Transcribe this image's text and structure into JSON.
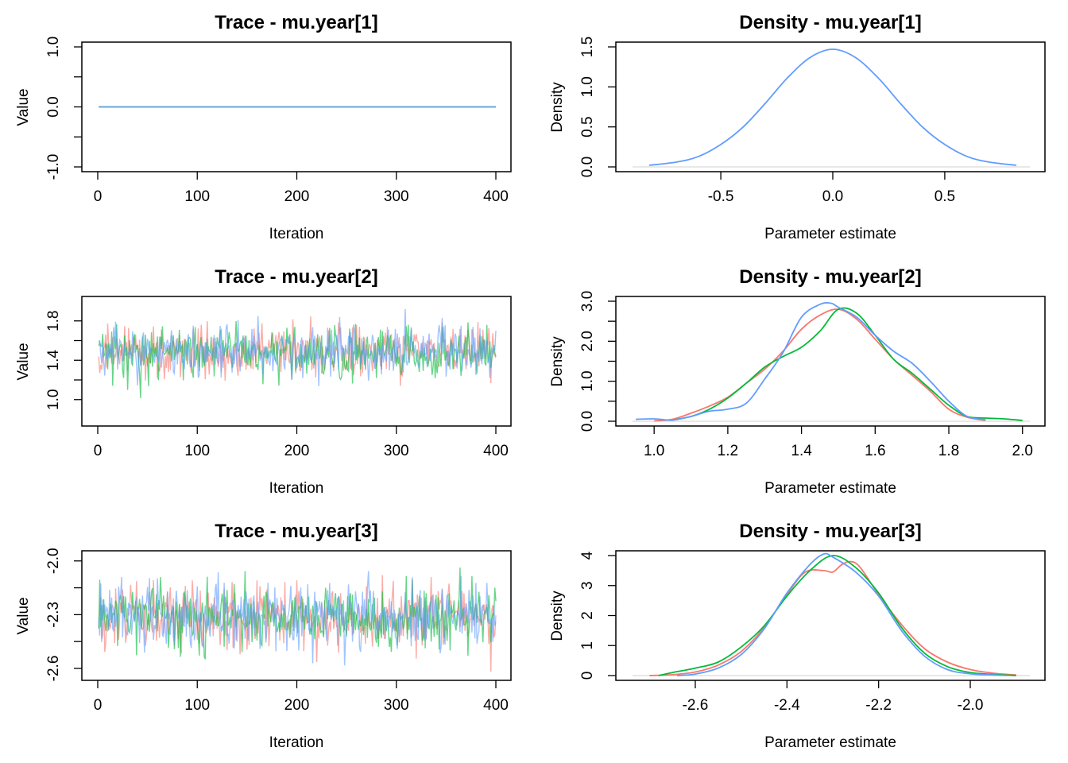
{
  "chart_data": [
    {
      "type": "line",
      "title": "Trace - mu.year[1]",
      "xlabel": "Iteration",
      "ylabel": "Value",
      "xlim": [
        0,
        400
      ],
      "ylim": [
        -1.0,
        1.0
      ],
      "xticks": [
        "0",
        "100",
        "200",
        "300",
        "400"
      ],
      "yticks": [
        "-1.0",
        "0.0",
        "1.0"
      ],
      "ytick_values": [
        -1.0,
        0.0,
        1.0
      ],
      "yminor": [
        -0.5,
        0.5
      ],
      "trace": {
        "n": 400,
        "center": 0.0,
        "spread": 0.0,
        "min": 0.0,
        "max": 0.0
      },
      "series": [
        {
          "name": "",
          "color": "#F8766D"
        },
        {
          "name": "",
          "color": "#00BA38"
        },
        {
          "name": "",
          "color": "#619CFF"
        }
      ]
    },
    {
      "type": "line",
      "title": "Density - mu.year[1]",
      "xlabel": "Parameter estimate",
      "ylabel": "Density",
      "xlim": [
        -0.88,
        0.88
      ],
      "ylim": [
        0,
        1.5
      ],
      "xticks": [
        "-0.5",
        "0.0",
        "0.5"
      ],
      "xtick_values": [
        -0.5,
        0.0,
        0.5
      ],
      "yticks": [
        "0.0",
        "0.5",
        "1.0",
        "1.5"
      ],
      "ytick_values": [
        0.0,
        0.5,
        1.0,
        1.5
      ],
      "series": [
        {
          "name": "",
          "color": "#619CFF",
          "x": [
            -0.82,
            -0.7,
            -0.6,
            -0.5,
            -0.4,
            -0.3,
            -0.2,
            -0.1,
            0.0,
            0.1,
            0.2,
            0.3,
            0.4,
            0.5,
            0.6,
            0.7,
            0.82
          ],
          "y": [
            0.02,
            0.06,
            0.13,
            0.28,
            0.5,
            0.8,
            1.12,
            1.37,
            1.47,
            1.37,
            1.12,
            0.8,
            0.5,
            0.28,
            0.13,
            0.06,
            0.02
          ]
        }
      ]
    },
    {
      "type": "line",
      "title": "Trace - mu.year[2]",
      "xlabel": "Iteration",
      "ylabel": "Value",
      "xlim": [
        0,
        400
      ],
      "ylim": [
        0.78,
        2.0
      ],
      "xticks": [
        "0",
        "100",
        "200",
        "300",
        "400"
      ],
      "yticks": [
        "1.0",
        "1.4",
        "1.8"
      ],
      "ytick_values": [
        1.0,
        1.4,
        1.8
      ],
      "yminor": [
        1.2,
        1.6
      ],
      "trace": {
        "n": 400,
        "center": 1.48,
        "spread": 0.13,
        "min": 0.86,
        "max": 1.94
      },
      "series": [
        {
          "name": "",
          "color": "#F8766D"
        },
        {
          "name": "",
          "color": "#00BA38"
        },
        {
          "name": "",
          "color": "#619CFF"
        }
      ]
    },
    {
      "type": "line",
      "title": "Density - mu.year[2]",
      "xlabel": "Parameter estimate",
      "ylabel": "Density",
      "xlim": [
        0.95,
        2.02
      ],
      "ylim": [
        0,
        3.0
      ],
      "xticks": [
        "1.0",
        "1.2",
        "1.4",
        "1.6",
        "1.8",
        "2.0"
      ],
      "xtick_values": [
        1.0,
        1.2,
        1.4,
        1.6,
        1.8,
        2.0
      ],
      "yticks": [
        "0.0",
        "1.0",
        "2.0",
        "3.0"
      ],
      "ytick_values": [
        0.0,
        1.0,
        2.0,
        3.0
      ],
      "yminor": [
        0.5,
        1.5,
        2.5
      ],
      "series": [
        {
          "name": "",
          "color": "#F8766D",
          "x": [
            1.0,
            1.05,
            1.1,
            1.15,
            1.2,
            1.25,
            1.3,
            1.35,
            1.4,
            1.45,
            1.5,
            1.55,
            1.6,
            1.65,
            1.7,
            1.75,
            1.8,
            1.85,
            1.9
          ],
          "y": [
            0.01,
            0.05,
            0.2,
            0.38,
            0.6,
            0.95,
            1.3,
            1.75,
            2.3,
            2.65,
            2.8,
            2.55,
            2.05,
            1.55,
            1.15,
            0.75,
            0.3,
            0.1,
            0.02
          ]
        },
        {
          "name": "",
          "color": "#00BA38",
          "x": [
            1.05,
            1.1,
            1.15,
            1.2,
            1.25,
            1.3,
            1.35,
            1.4,
            1.45,
            1.5,
            1.55,
            1.6,
            1.65,
            1.7,
            1.75,
            1.8,
            1.85,
            1.9,
            1.95,
            2.0
          ],
          "y": [
            0.03,
            0.12,
            0.3,
            0.58,
            0.95,
            1.35,
            1.62,
            1.85,
            2.25,
            2.8,
            2.7,
            2.15,
            1.55,
            1.2,
            0.8,
            0.4,
            0.12,
            0.08,
            0.06,
            0.02
          ]
        },
        {
          "name": "",
          "color": "#619CFF",
          "x": [
            0.95,
            1.0,
            1.05,
            1.1,
            1.15,
            1.2,
            1.25,
            1.3,
            1.35,
            1.4,
            1.45,
            1.48,
            1.5,
            1.55,
            1.6,
            1.65,
            1.7,
            1.75,
            1.8,
            1.85,
            1.9
          ],
          "y": [
            0.05,
            0.06,
            0.03,
            0.12,
            0.25,
            0.3,
            0.45,
            1.05,
            1.72,
            2.6,
            2.92,
            2.95,
            2.85,
            2.6,
            2.15,
            1.75,
            1.45,
            1.0,
            0.5,
            0.12,
            0.04
          ]
        }
      ]
    },
    {
      "type": "line",
      "title": "Trace - mu.year[3]",
      "xlabel": "Iteration",
      "ylabel": "Value",
      "xlim": [
        0,
        400
      ],
      "ylim": [
        -2.64,
        -1.97
      ],
      "xticks": [
        "0",
        "100",
        "200",
        "300",
        "400"
      ],
      "yticks": [
        "-2.6",
        "-2.3",
        "-2.0"
      ],
      "ytick_values": [
        -2.6,
        -2.3,
        -2.0
      ],
      "yminor": [
        -2.45,
        -2.15
      ],
      "trace": {
        "n": 400,
        "center": -2.31,
        "spread": 0.09,
        "min": -2.63,
        "max": -2.0
      },
      "series": [
        {
          "name": "",
          "color": "#F8766D"
        },
        {
          "name": "",
          "color": "#00BA38"
        },
        {
          "name": "",
          "color": "#619CFF"
        }
      ]
    },
    {
      "type": "line",
      "title": "Density - mu.year[3]",
      "xlabel": "Parameter estimate",
      "ylabel": "Density",
      "xlim": [
        -2.73,
        -1.87
      ],
      "ylim": [
        0,
        4.0
      ],
      "xticks": [
        "-2.6",
        "-2.4",
        "-2.2",
        "-2.0"
      ],
      "xtick_values": [
        -2.6,
        -2.4,
        -2.2,
        -2.0
      ],
      "yticks": [
        "0",
        "1",
        "2",
        "3",
        "4"
      ],
      "ytick_values": [
        0,
        1,
        2,
        3,
        4
      ],
      "series": [
        {
          "name": "",
          "color": "#F8766D",
          "x": [
            -2.7,
            -2.65,
            -2.6,
            -2.55,
            -2.5,
            -2.45,
            -2.4,
            -2.36,
            -2.32,
            -2.3,
            -2.28,
            -2.26,
            -2.24,
            -2.2,
            -2.15,
            -2.1,
            -2.05,
            -2.0,
            -1.95,
            -1.9
          ],
          "y": [
            0.0,
            0.03,
            0.12,
            0.35,
            0.8,
            1.6,
            2.7,
            3.45,
            3.5,
            3.45,
            3.7,
            3.8,
            3.6,
            2.7,
            1.7,
            0.9,
            0.45,
            0.2,
            0.08,
            0.02
          ]
        },
        {
          "name": "",
          "color": "#00BA38",
          "x": [
            -2.68,
            -2.65,
            -2.6,
            -2.55,
            -2.5,
            -2.45,
            -2.4,
            -2.35,
            -2.3,
            -2.25,
            -2.2,
            -2.15,
            -2.1,
            -2.05,
            -2.0,
            -1.95,
            -1.9
          ],
          "y": [
            0.0,
            0.1,
            0.25,
            0.45,
            0.95,
            1.65,
            2.65,
            3.5,
            4.0,
            3.6,
            2.75,
            1.6,
            0.75,
            0.3,
            0.1,
            0.04,
            0.0
          ]
        },
        {
          "name": "",
          "color": "#619CFF",
          "x": [
            -2.64,
            -2.6,
            -2.55,
            -2.5,
            -2.45,
            -2.4,
            -2.35,
            -2.32,
            -2.3,
            -2.25,
            -2.2,
            -2.15,
            -2.1,
            -2.05,
            -2.0,
            -1.95,
            -1.92
          ],
          "y": [
            0.0,
            0.05,
            0.25,
            0.7,
            1.55,
            2.75,
            3.7,
            4.05,
            3.95,
            3.45,
            2.65,
            1.5,
            0.65,
            0.2,
            0.06,
            0.02,
            0.0
          ]
        }
      ]
    }
  ]
}
